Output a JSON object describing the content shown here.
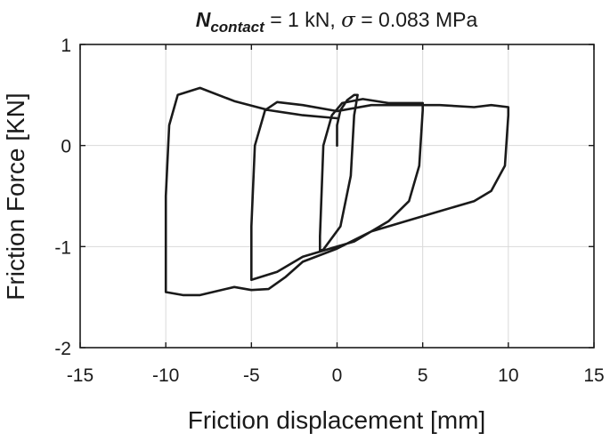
{
  "chart_data": {
    "type": "line",
    "title": {
      "symbol": "N",
      "subscript": "contact",
      "rest1": " = 1 kN, ",
      "sigma": "σ",
      "rest2": " = 0.083 MPa"
    },
    "xlabel": "Friction displacement [mm]",
    "ylabel": "Friction Force [KN]",
    "xlim": [
      -15,
      15
    ],
    "ylim": [
      -2,
      1
    ],
    "xticks": [
      -15,
      -10,
      -5,
      0,
      5,
      10,
      15
    ],
    "yticks": [
      -2,
      -1,
      0,
      1
    ],
    "xtick_labels": [
      "-15",
      "-10",
      "-5",
      "0",
      "5",
      "10",
      "15"
    ],
    "ytick_labels": [
      "-2",
      "-1",
      "0",
      "1"
    ],
    "grid": true,
    "series": [
      {
        "color": "#1a1a1a",
        "points": [
          [
            0,
            0
          ],
          [
            0,
            0.2
          ],
          [
            0.2,
            0.35
          ],
          [
            0.6,
            0.45
          ],
          [
            1,
            0.5
          ],
          [
            1.2,
            0.5
          ],
          [
            1,
            0.3
          ],
          [
            0.8,
            -0.3
          ],
          [
            0.2,
            -0.8
          ],
          [
            -0.8,
            -1.03
          ],
          [
            -1,
            -1.04
          ],
          [
            -1,
            -0.9
          ],
          [
            -0.8,
            0.0
          ],
          [
            -0.3,
            0.3
          ],
          [
            0.3,
            0.42
          ],
          [
            1.5,
            0.46
          ],
          [
            3,
            0.42
          ],
          [
            5,
            0.42
          ],
          [
            5,
            0.35
          ],
          [
            4.8,
            -0.2
          ],
          [
            4.2,
            -0.55
          ],
          [
            3,
            -0.75
          ],
          [
            1,
            -0.95
          ],
          [
            -2,
            -1.1
          ],
          [
            -3.5,
            -1.25
          ],
          [
            -5,
            -1.33
          ],
          [
            -5,
            -1.3
          ],
          [
            -5,
            -0.8
          ],
          [
            -4.8,
            0.0
          ],
          [
            -4.2,
            0.35
          ],
          [
            -3.5,
            0.43
          ],
          [
            -2,
            0.4
          ],
          [
            0,
            0.34
          ],
          [
            2,
            0.4
          ],
          [
            4,
            0.4
          ],
          [
            6,
            0.4
          ],
          [
            8,
            0.38
          ],
          [
            9,
            0.4
          ],
          [
            10,
            0.38
          ],
          [
            10,
            0.3
          ],
          [
            9.8,
            -0.2
          ],
          [
            9,
            -0.45
          ],
          [
            8,
            -0.55
          ],
          [
            6,
            -0.65
          ],
          [
            4,
            -0.75
          ],
          [
            2,
            -0.85
          ],
          [
            0,
            -1.02
          ],
          [
            -2,
            -1.15
          ],
          [
            -3,
            -1.3
          ],
          [
            -4,
            -1.42
          ],
          [
            -5,
            -1.43
          ],
          [
            -6,
            -1.4
          ],
          [
            -8,
            -1.48
          ],
          [
            -9,
            -1.48
          ],
          [
            -10,
            -1.45
          ],
          [
            -10,
            -1.3
          ],
          [
            -10,
            -0.5
          ],
          [
            -9.8,
            0.2
          ],
          [
            -9.3,
            0.5
          ],
          [
            -8,
            0.57
          ],
          [
            -6,
            0.44
          ],
          [
            -4,
            0.35
          ],
          [
            -2,
            0.3
          ],
          [
            0,
            0.27
          ]
        ]
      }
    ]
  }
}
